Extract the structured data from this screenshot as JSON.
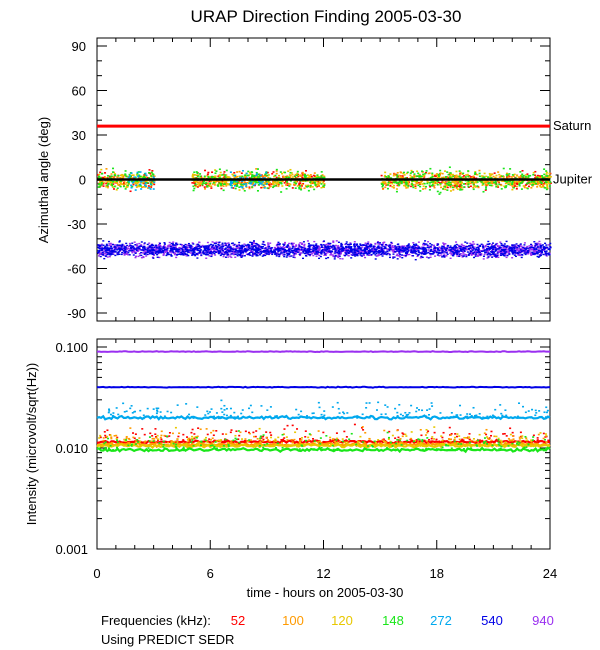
{
  "colors": {
    "52": "#ff0000",
    "100": "#ff9a00",
    "120": "#e8c800",
    "148": "#19e619",
    "272": "#00a8ee",
    "540": "#0000e6",
    "940": "#9a2ff0",
    "reference_line": "#000000",
    "saturn_line": "#ff0000"
  },
  "footer": {
    "freq_label": "Frequencies (kHz):",
    "source_label": "Using PREDICT SEDR"
  },
  "chart_data": [
    {
      "type": "scatter",
      "title": "URAP Direction Finding  2005-03-30",
      "ylabel": "Azimuthal angle (deg)",
      "xlim": [
        0,
        24
      ],
      "ylim": [
        -90,
        90
      ],
      "yticks": [
        "90",
        "60",
        "30",
        "0",
        "-30",
        "-60",
        "-90"
      ],
      "reference_lines": [
        {
          "label": "Saturn",
          "y": 36
        },
        {
          "label": "Jupiter",
          "y": 0
        }
      ],
      "series": [
        {
          "name": "940",
          "y_center": -47,
          "spread": 7,
          "x_start": 0,
          "x_end": 24
        },
        {
          "name": "540",
          "y_center": -47,
          "spread": 7,
          "x_start": 0,
          "x_end": 24
        },
        {
          "name": "52",
          "y_center": 0,
          "spread": 8,
          "active_hours": [
            [
              0,
              3
            ],
            [
              5,
              12
            ],
            [
              15,
              24
            ]
          ]
        },
        {
          "name": "100",
          "y_center": 0,
          "spread": 8,
          "active_hours": [
            [
              0,
              3
            ],
            [
              5,
              12
            ],
            [
              15,
              24
            ]
          ]
        },
        {
          "name": "120",
          "y_center": 0,
          "spread": 8,
          "active_hours": [
            [
              0,
              3
            ],
            [
              5,
              12
            ],
            [
              15,
              24
            ]
          ]
        },
        {
          "name": "148",
          "y_center": 0,
          "spread": 10,
          "active_hours": [
            [
              0,
              3
            ],
            [
              5,
              12
            ],
            [
              15,
              24
            ]
          ]
        },
        {
          "name": "272",
          "y_center": 0,
          "spread": 10,
          "active_hours": [
            [
              1.5,
              3
            ],
            [
              7,
              9
            ]
          ]
        }
      ]
    },
    {
      "type": "line",
      "ylabel": "Intensity (microvolt/sqrt(Hz))",
      "xlabel": "time - hours on 2005-03-30",
      "xlim": [
        0,
        24
      ],
      "xticks": [
        "0",
        "6",
        "12",
        "18",
        "24"
      ],
      "ylim": [
        0.001,
        0.12
      ],
      "yscale": "log",
      "yticks": [
        "0.100",
        "0.010",
        "0.001"
      ],
      "series": [
        {
          "name": "940",
          "level": 0.09,
          "x": [
            0,
            24
          ]
        },
        {
          "name": "540",
          "level": 0.04,
          "x": [
            0,
            24
          ]
        },
        {
          "name": "272",
          "level": 0.02,
          "x": [
            0,
            24
          ]
        },
        {
          "name": "52",
          "level": 0.0115,
          "x": [
            0,
            24
          ]
        },
        {
          "name": "100",
          "level": 0.0108,
          "x": [
            0,
            24
          ]
        },
        {
          "name": "120",
          "level": 0.0105,
          "x": [
            0,
            24
          ]
        },
        {
          "name": "148",
          "level": 0.0096,
          "x": [
            0,
            24
          ]
        }
      ]
    }
  ]
}
